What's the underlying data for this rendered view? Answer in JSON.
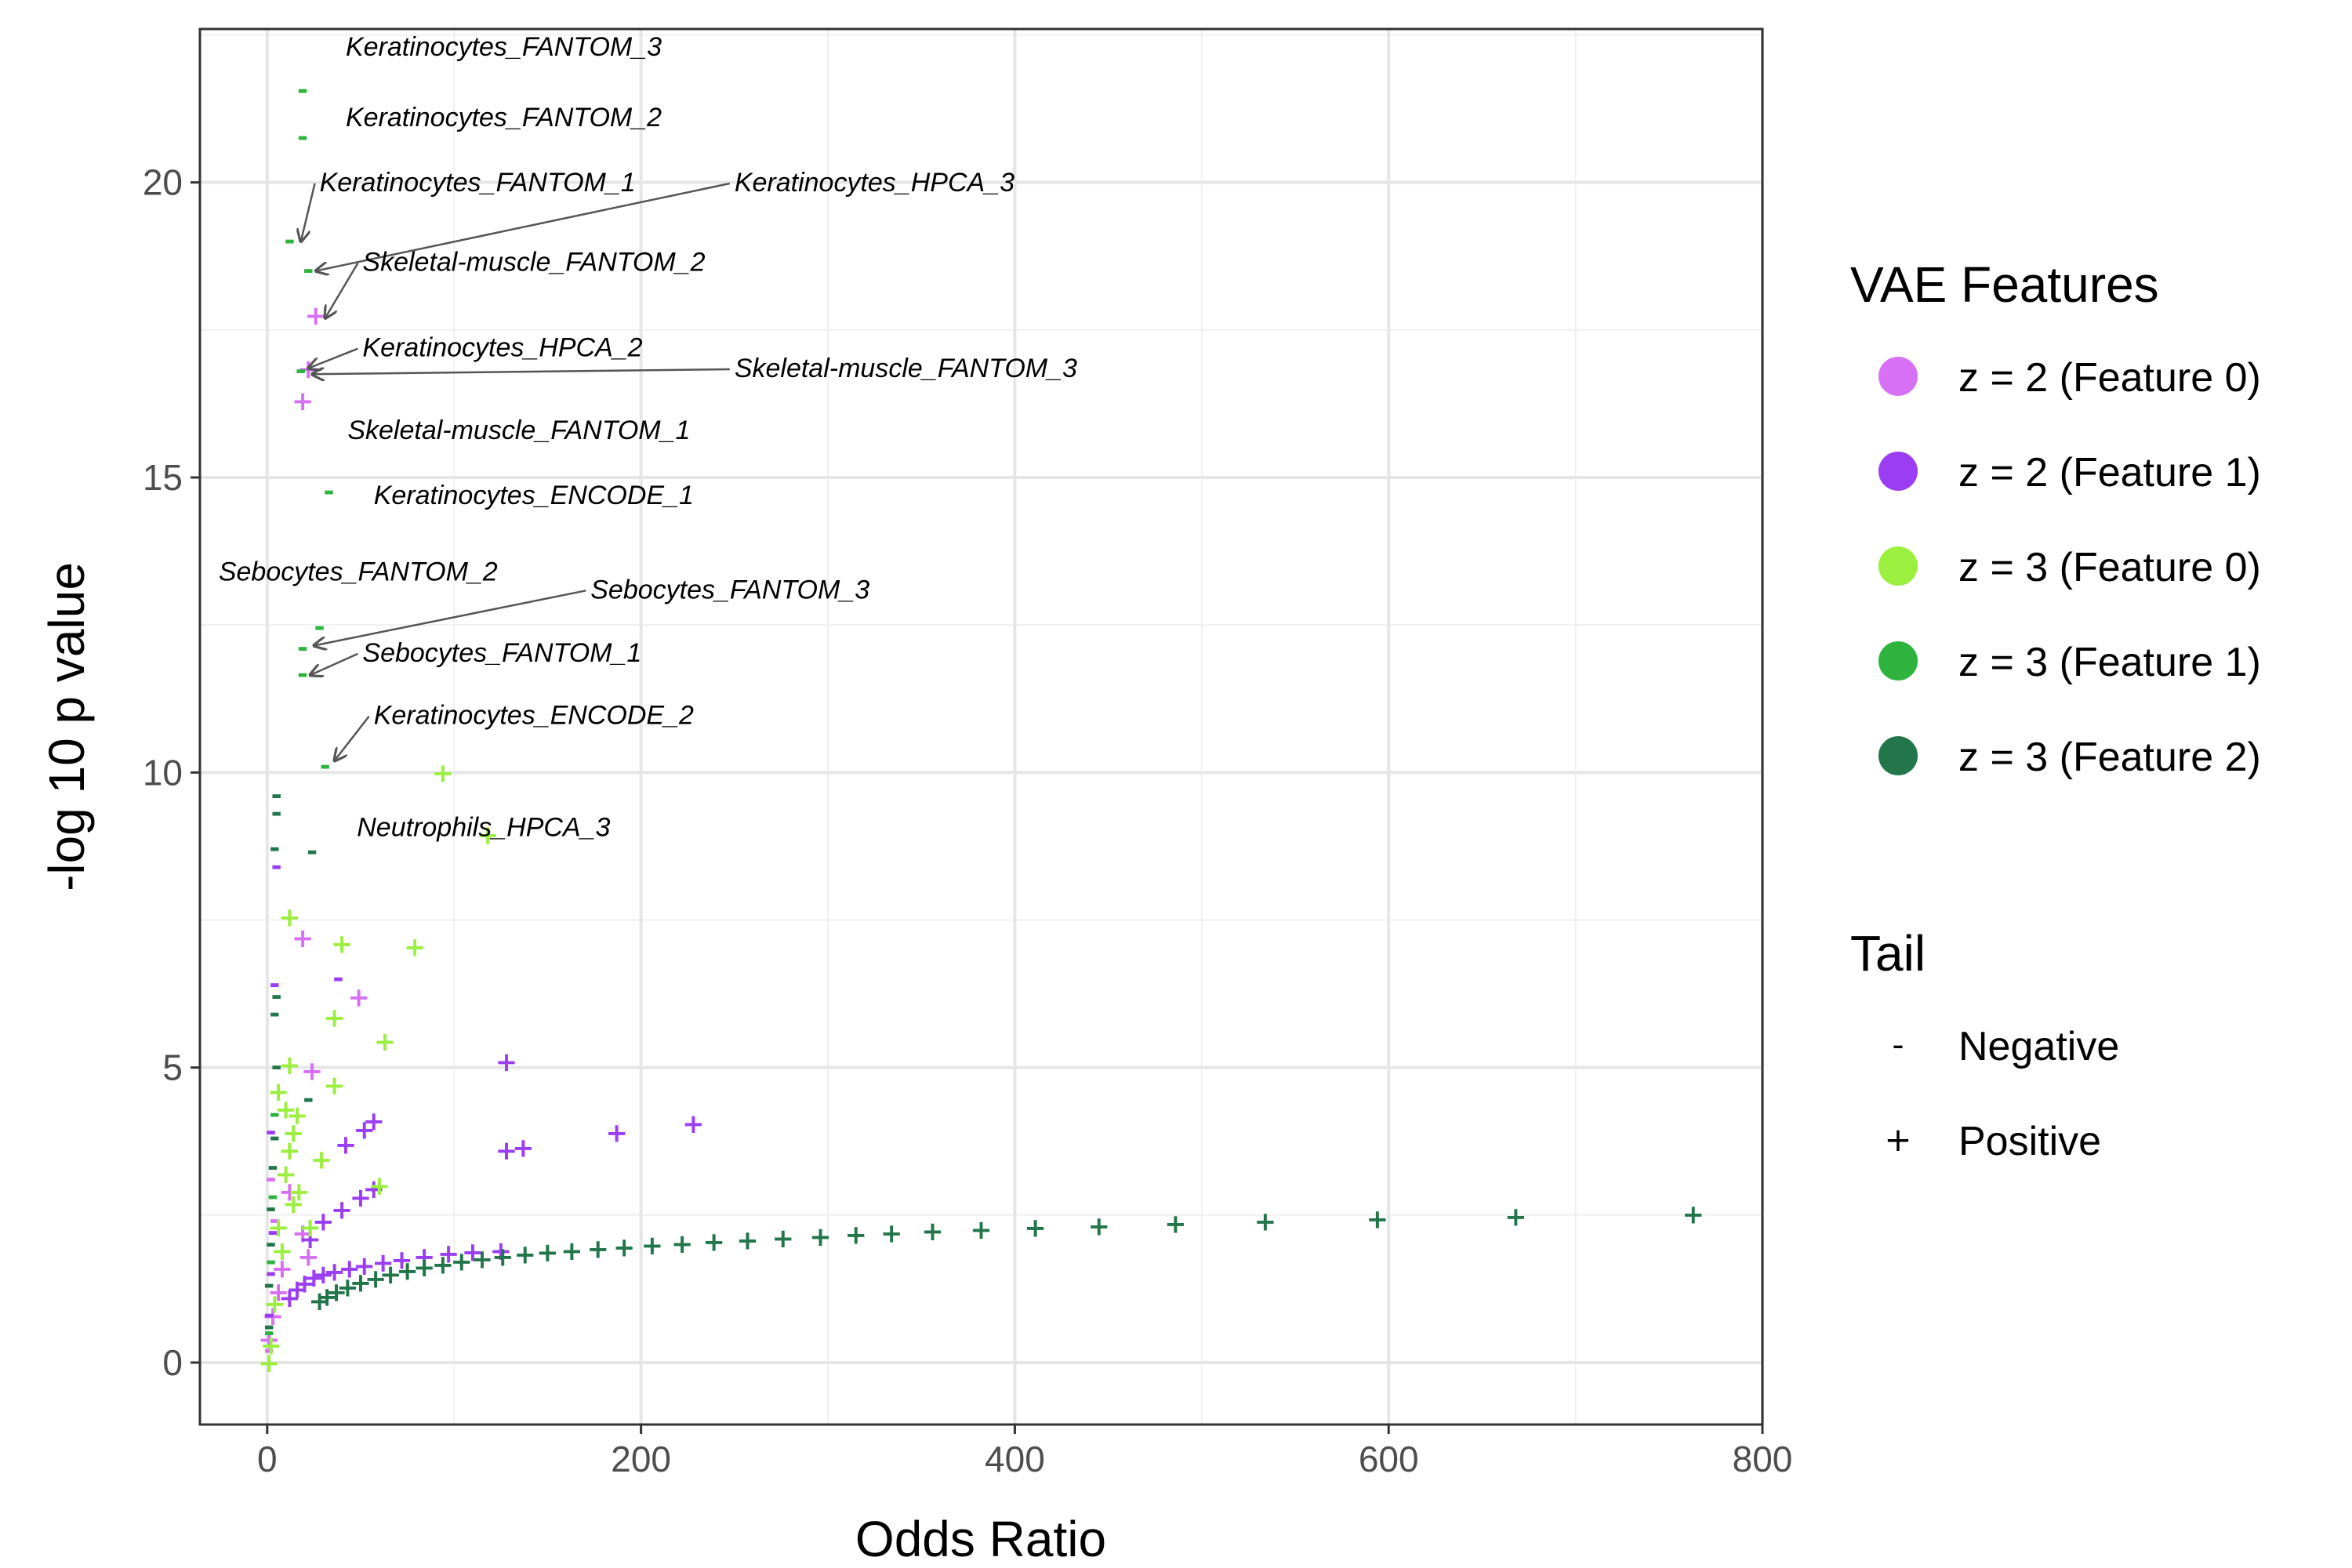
{
  "chart_data": {
    "type": "scatter",
    "xlabel": "Odds Ratio",
    "ylabel": "-log 10 p value",
    "xlim": [
      -36,
      800
    ],
    "ylim": [
      -1.05,
      22.6
    ],
    "xticks": [
      0,
      200,
      400,
      600,
      800
    ],
    "yticks": [
      0,
      5,
      10,
      15,
      20
    ],
    "grid": true,
    "legend_placement": "right",
    "legend": {
      "color_title": "VAE Features",
      "color_entries": [
        {
          "label": "z = 2 (Feature 0)",
          "color": "#d770f5"
        },
        {
          "label": "z = 2 (Feature 1)",
          "color": "#9b3df2"
        },
        {
          "label": "z = 3 (Feature 0)",
          "color": "#9bef3e"
        },
        {
          "label": "z = 3 (Feature 1)",
          "color": "#2eb33f"
        },
        {
          "label": "z = 3 (Feature 2)",
          "color": "#22764a"
        }
      ],
      "shape_title": "Tail",
      "shape_entries": [
        {
          "label": "Negative",
          "symbol": "-"
        },
        {
          "label": "Positive",
          "symbol": "+"
        }
      ]
    },
    "series": [
      {
        "name": "z = 2 (Feature 0)",
        "color": "#d770f5",
        "points": [
          {
            "x": 26,
            "y": 17.75,
            "tail": "+"
          },
          {
            "x": 22,
            "y": 16.85,
            "tail": "+"
          },
          {
            "x": 19,
            "y": 16.3,
            "tail": "+"
          },
          {
            "x": 19,
            "y": 7.2,
            "tail": "+"
          },
          {
            "x": 49,
            "y": 6.2,
            "tail": "+"
          },
          {
            "x": 24,
            "y": 4.95,
            "tail": "+"
          },
          {
            "x": 19,
            "y": 2.2,
            "tail": "+"
          },
          {
            "x": 22,
            "y": 1.8,
            "tail": "+"
          },
          {
            "x": 12,
            "y": 2.9,
            "tail": "+"
          },
          {
            "x": 8,
            "y": 1.6,
            "tail": "+"
          },
          {
            "x": 6,
            "y": 1.2,
            "tail": "+"
          },
          {
            "x": 3,
            "y": 0.8,
            "tail": "+"
          },
          {
            "x": 1,
            "y": 0.4,
            "tail": "+"
          },
          {
            "x": 4,
            "y": 2.4,
            "tail": "-"
          },
          {
            "x": 2,
            "y": 3.1,
            "tail": "-"
          },
          {
            "x": 1,
            "y": 0.2,
            "tail": "-"
          }
        ]
      },
      {
        "name": "z = 2 (Feature 1)",
        "color": "#9b3df2",
        "points": [
          {
            "x": 128,
            "y": 5.1,
            "tail": "+"
          },
          {
            "x": 228,
            "y": 4.05,
            "tail": "+"
          },
          {
            "x": 187,
            "y": 3.9,
            "tail": "+"
          },
          {
            "x": 137,
            "y": 3.65,
            "tail": "+"
          },
          {
            "x": 128,
            "y": 3.6,
            "tail": "+"
          },
          {
            "x": 57,
            "y": 4.1,
            "tail": "+"
          },
          {
            "x": 52,
            "y": 3.95,
            "tail": "+"
          },
          {
            "x": 42,
            "y": 3.7,
            "tail": "+"
          },
          {
            "x": 57,
            "y": 2.95,
            "tail": "+"
          },
          {
            "x": 50,
            "y": 2.8,
            "tail": "+"
          },
          {
            "x": 40,
            "y": 2.6,
            "tail": "+"
          },
          {
            "x": 30,
            "y": 2.4,
            "tail": "+"
          },
          {
            "x": 23,
            "y": 2.1,
            "tail": "+"
          },
          {
            "x": 12,
            "y": 1.1,
            "tail": "+"
          },
          {
            "x": 16,
            "y": 1.25,
            "tail": "+"
          },
          {
            "x": 20,
            "y": 1.35,
            "tail": "+"
          },
          {
            "x": 25,
            "y": 1.45,
            "tail": "+"
          },
          {
            "x": 30,
            "y": 1.5,
            "tail": "+"
          },
          {
            "x": 36,
            "y": 1.55,
            "tail": "+"
          },
          {
            "x": 44,
            "y": 1.6,
            "tail": "+"
          },
          {
            "x": 52,
            "y": 1.65,
            "tail": "+"
          },
          {
            "x": 62,
            "y": 1.7,
            "tail": "+"
          },
          {
            "x": 72,
            "y": 1.75,
            "tail": "+"
          },
          {
            "x": 84,
            "y": 1.8,
            "tail": "+"
          },
          {
            "x": 97,
            "y": 1.85,
            "tail": "+"
          },
          {
            "x": 110,
            "y": 1.88,
            "tail": "+"
          },
          {
            "x": 125,
            "y": 1.9,
            "tail": "+"
          },
          {
            "x": 5,
            "y": 8.4,
            "tail": "-"
          },
          {
            "x": 38,
            "y": 6.5,
            "tail": "-"
          },
          {
            "x": 4,
            "y": 6.4,
            "tail": "-"
          },
          {
            "x": 2,
            "y": 3.9,
            "tail": "-"
          },
          {
            "x": 3,
            "y": 2.2,
            "tail": "-"
          },
          {
            "x": 2,
            "y": 1.5,
            "tail": "-"
          },
          {
            "x": 1,
            "y": 0.8,
            "tail": "-"
          }
        ]
      },
      {
        "name": "z = 3 (Feature 0)",
        "color": "#9bef3e",
        "points": [
          {
            "x": 94,
            "y": 10.0,
            "tail": "+"
          },
          {
            "x": 118,
            "y": 8.95,
            "tail": "+"
          },
          {
            "x": 12,
            "y": 7.55,
            "tail": "+"
          },
          {
            "x": 40,
            "y": 7.1,
            "tail": "+"
          },
          {
            "x": 79,
            "y": 7.05,
            "tail": "+"
          },
          {
            "x": 36,
            "y": 5.85,
            "tail": "+"
          },
          {
            "x": 63,
            "y": 5.45,
            "tail": "+"
          },
          {
            "x": 12,
            "y": 5.05,
            "tail": "+"
          },
          {
            "x": 36,
            "y": 4.7,
            "tail": "+"
          },
          {
            "x": 6,
            "y": 4.6,
            "tail": "+"
          },
          {
            "x": 10,
            "y": 4.3,
            "tail": "+"
          },
          {
            "x": 16,
            "y": 4.2,
            "tail": "+"
          },
          {
            "x": 14,
            "y": 3.9,
            "tail": "+"
          },
          {
            "x": 12,
            "y": 3.6,
            "tail": "+"
          },
          {
            "x": 29,
            "y": 3.45,
            "tail": "+"
          },
          {
            "x": 10,
            "y": 3.2,
            "tail": "+"
          },
          {
            "x": 60,
            "y": 3.0,
            "tail": "+"
          },
          {
            "x": 17,
            "y": 2.9,
            "tail": "+"
          },
          {
            "x": 14,
            "y": 2.7,
            "tail": "+"
          },
          {
            "x": 23,
            "y": 2.3,
            "tail": "+"
          },
          {
            "x": 6,
            "y": 2.3,
            "tail": "+"
          },
          {
            "x": 8,
            "y": 1.9,
            "tail": "+"
          },
          {
            "x": 4,
            "y": 1.0,
            "tail": "+"
          },
          {
            "x": 2,
            "y": 0.3,
            "tail": "+"
          },
          {
            "x": 1,
            "y": 0.0,
            "tail": "+"
          }
        ]
      },
      {
        "name": "z = 3 (Feature 1)",
        "color": "#2eb33f",
        "points": [
          {
            "x": 19,
            "y": 21.55,
            "tail": "-"
          },
          {
            "x": 19,
            "y": 20.75,
            "tail": "-"
          },
          {
            "x": 12,
            "y": 19.0,
            "tail": "-"
          },
          {
            "x": 22,
            "y": 18.5,
            "tail": "-"
          },
          {
            "x": 18,
            "y": 16.8,
            "tail": "-"
          },
          {
            "x": 33,
            "y": 14.75,
            "tail": "-"
          },
          {
            "x": 28,
            "y": 12.45,
            "tail": "-"
          },
          {
            "x": 19,
            "y": 12.1,
            "tail": "-"
          },
          {
            "x": 19,
            "y": 11.65,
            "tail": "-"
          },
          {
            "x": 31,
            "y": 10.1,
            "tail": "-"
          },
          {
            "x": 4,
            "y": 4.2,
            "tail": "-"
          },
          {
            "x": 3,
            "y": 2.8,
            "tail": "-"
          },
          {
            "x": 2,
            "y": 1.7,
            "tail": "-"
          },
          {
            "x": 1,
            "y": 0.5,
            "tail": "-"
          }
        ]
      },
      {
        "name": "z = 3 (Feature 2)",
        "color": "#22764a",
        "points": [
          {
            "x": 5,
            "y": 9.6,
            "tail": "-"
          },
          {
            "x": 5,
            "y": 9.3,
            "tail": "-"
          },
          {
            "x": 4,
            "y": 8.7,
            "tail": "-"
          },
          {
            "x": 24,
            "y": 8.65,
            "tail": "-"
          },
          {
            "x": 5,
            "y": 6.2,
            "tail": "-"
          },
          {
            "x": 4,
            "y": 5.9,
            "tail": "-"
          },
          {
            "x": 5,
            "y": 5.0,
            "tail": "-"
          },
          {
            "x": 22,
            "y": 4.45,
            "tail": "-"
          },
          {
            "x": 4,
            "y": 3.8,
            "tail": "-"
          },
          {
            "x": 3,
            "y": 3.3,
            "tail": "-"
          },
          {
            "x": 2,
            "y": 2.6,
            "tail": "-"
          },
          {
            "x": 2,
            "y": 2.0,
            "tail": "-"
          },
          {
            "x": 1,
            "y": 1.3,
            "tail": "-"
          },
          {
            "x": 1,
            "y": 0.6,
            "tail": "-"
          },
          {
            "x": 28,
            "y": 1.05,
            "tail": "+"
          },
          {
            "x": 32,
            "y": 1.12,
            "tail": "+"
          },
          {
            "x": 37,
            "y": 1.2,
            "tail": "+"
          },
          {
            "x": 43,
            "y": 1.28,
            "tail": "+"
          },
          {
            "x": 50,
            "y": 1.36,
            "tail": "+"
          },
          {
            "x": 58,
            "y": 1.43,
            "tail": "+"
          },
          {
            "x": 66,
            "y": 1.5,
            "tail": "+"
          },
          {
            "x": 75,
            "y": 1.56,
            "tail": "+"
          },
          {
            "x": 84,
            "y": 1.62,
            "tail": "+"
          },
          {
            "x": 94,
            "y": 1.67,
            "tail": "+"
          },
          {
            "x": 104,
            "y": 1.72,
            "tail": "+"
          },
          {
            "x": 115,
            "y": 1.76,
            "tail": "+"
          },
          {
            "x": 126,
            "y": 1.8,
            "tail": "+"
          },
          {
            "x": 138,
            "y": 1.84,
            "tail": "+"
          },
          {
            "x": 150,
            "y": 1.87,
            "tail": "+"
          },
          {
            "x": 163,
            "y": 1.9,
            "tail": "+"
          },
          {
            "x": 177,
            "y": 1.93,
            "tail": "+"
          },
          {
            "x": 191,
            "y": 1.96,
            "tail": "+"
          },
          {
            "x": 206,
            "y": 1.99,
            "tail": "+"
          },
          {
            "x": 222,
            "y": 2.02,
            "tail": "+"
          },
          {
            "x": 239,
            "y": 2.05,
            "tail": "+"
          },
          {
            "x": 257,
            "y": 2.08,
            "tail": "+"
          },
          {
            "x": 276,
            "y": 2.11,
            "tail": "+"
          },
          {
            "x": 296,
            "y": 2.14,
            "tail": "+"
          },
          {
            "x": 315,
            "y": 2.17,
            "tail": "+"
          },
          {
            "x": 334,
            "y": 2.2,
            "tail": "+"
          },
          {
            "x": 356,
            "y": 2.23,
            "tail": "+"
          },
          {
            "x": 382,
            "y": 2.26,
            "tail": "+"
          },
          {
            "x": 411,
            "y": 2.29,
            "tail": "+"
          },
          {
            "x": 445,
            "y": 2.32,
            "tail": "+"
          },
          {
            "x": 486,
            "y": 2.36,
            "tail": "+"
          },
          {
            "x": 534,
            "y": 2.4,
            "tail": "+"
          },
          {
            "x": 594,
            "y": 2.44,
            "tail": "+"
          },
          {
            "x": 668,
            "y": 2.48,
            "tail": "+"
          },
          {
            "x": 763,
            "y": 2.52,
            "tail": "+"
          }
        ]
      }
    ],
    "annotations": [
      {
        "text": "Keratinocytes_FANTOM_3",
        "x": 42,
        "y": 22.15,
        "arrow_to": null
      },
      {
        "text": "Keratinocytes_FANTOM_2",
        "x": 42,
        "y": 20.95,
        "arrow_to": null
      },
      {
        "text": "Keratinocytes_FANTOM_1",
        "x": 28,
        "y": 19.85,
        "arrow_to": [
          18,
          19.0
        ]
      },
      {
        "text": "Keratinocytes_HPCA_3",
        "x": 250,
        "y": 19.85,
        "arrow_to": [
          26,
          18.5
        ]
      },
      {
        "text": "Skeletal-muscle_FANTOM_2",
        "x": 51,
        "y": 18.5,
        "arrow_to": [
          31,
          17.7
        ]
      },
      {
        "text": "Keratinocytes_HPCA_2",
        "x": 51,
        "y": 17.05,
        "arrow_to": [
          22,
          16.85
        ]
      },
      {
        "text": "Skeletal-muscle_FANTOM_3",
        "x": 250,
        "y": 16.7,
        "arrow_to": [
          24,
          16.75
        ]
      },
      {
        "text": "Skeletal-muscle_FANTOM_1",
        "x": 43,
        "y": 15.65,
        "arrow_to": null
      },
      {
        "text": "Keratinocytes_ENCODE_1",
        "x": 57,
        "y": 14.55,
        "arrow_to": null
      },
      {
        "text": "Sebocytes_FANTOM_2",
        "x": -26,
        "y": 13.25,
        "arrow_to": null
      },
      {
        "text": "Sebocytes_FANTOM_3",
        "x": 173,
        "y": 12.95,
        "arrow_to": [
          25,
          12.15
        ]
      },
      {
        "text": "Sebocytes_FANTOM_1",
        "x": 51,
        "y": 11.88,
        "arrow_to": [
          23,
          11.65
        ]
      },
      {
        "text": "Keratinocytes_ENCODE_2",
        "x": 57,
        "y": 10.82,
        "arrow_to": [
          36,
          10.2
        ]
      },
      {
        "text": "Neutrophils_HPCA_3",
        "x": 48,
        "y": 8.92,
        "arrow_to": null
      }
    ]
  }
}
